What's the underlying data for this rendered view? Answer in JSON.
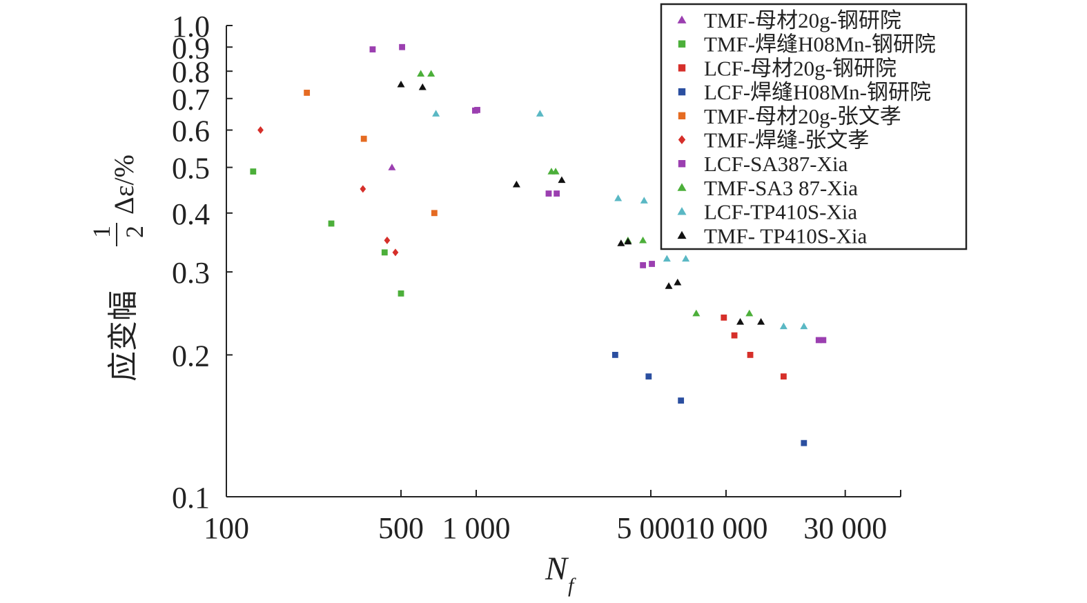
{
  "chart_data": {
    "type": "scatter",
    "title": "",
    "xlabel": "N_f",
    "xlabel_main": "N",
    "xlabel_sub": "f",
    "ylabel": "应变幅 1/2 Δε/%",
    "ylabel_text": "应变幅",
    "ylabel_frac_num": "1",
    "ylabel_frac_den": "2",
    "ylabel_symbol": "Δε/%",
    "x_scale": "log",
    "y_scale": "log",
    "xlim": [
      100,
      50000
    ],
    "ylim": [
      0.1,
      1.0
    ],
    "x_ticks": [
      {
        "value": 100,
        "label": "100"
      },
      {
        "value": 500,
        "label": "500"
      },
      {
        "value": 1000,
        "label": "1 000"
      },
      {
        "value": 5000,
        "label": "5 000"
      },
      {
        "value": 10000,
        "label": "10 000"
      },
      {
        "value": 30000,
        "label": "30 000"
      }
    ],
    "y_ticks": [
      {
        "value": 0.1,
        "label": "0.1"
      },
      {
        "value": 0.2,
        "label": "0.2"
      },
      {
        "value": 0.3,
        "label": "0.3"
      },
      {
        "value": 0.4,
        "label": "0.4"
      },
      {
        "value": 0.5,
        "label": "0.5"
      },
      {
        "value": 0.6,
        "label": "0.6"
      },
      {
        "value": 0.7,
        "label": "0.7"
      },
      {
        "value": 0.8,
        "label": "0.8"
      },
      {
        "value": 0.9,
        "label": "0.9"
      },
      {
        "value": 1.0,
        "label": "1.0"
      }
    ],
    "legend_position": "top-right",
    "grid": false,
    "series": [
      {
        "name": "TMF-母材20g-钢研院",
        "marker": "triangle",
        "color": "#9b3fb0",
        "points": [
          [
            460,
            0.5
          ]
        ]
      },
      {
        "name": "TMF-焊缝H08Mn-钢研院",
        "marker": "square",
        "color": "#4caf3a",
        "points": [
          [
            128,
            0.49
          ],
          [
            263,
            0.38
          ],
          [
            430,
            0.33
          ],
          [
            500,
            0.27
          ]
        ]
      },
      {
        "name": "LCF-母材20g-钢研院",
        "marker": "square",
        "color": "#d62f2a",
        "points": [
          [
            9800,
            0.24
          ],
          [
            10800,
            0.22
          ],
          [
            12500,
            0.2
          ],
          [
            17000,
            0.18
          ]
        ]
      },
      {
        "name": "LCF-焊缝H08Mn-钢研院",
        "marker": "square",
        "color": "#2b4fa0",
        "points": [
          [
            3600,
            0.2
          ],
          [
            4900,
            0.18
          ],
          [
            6600,
            0.16
          ],
          [
            20500,
            0.13
          ]
        ]
      },
      {
        "name": "TMF-母材20g-张文孝",
        "marker": "square",
        "color": "#e56b22",
        "points": [
          [
            210,
            0.72
          ],
          [
            355,
            0.575
          ],
          [
            680,
            0.4
          ]
        ]
      },
      {
        "name": "TMF-焊缝-张文孝",
        "marker": "diamond",
        "color": "#d62f2a",
        "points": [
          [
            137,
            0.6
          ],
          [
            352,
            0.45
          ],
          [
            440,
            0.35
          ],
          [
            475,
            0.33
          ]
        ]
      },
      {
        "name": "LCF-SA387-Xia",
        "marker": "square",
        "color": "#9b3fb0",
        "points": [
          [
            385,
            0.89
          ],
          [
            505,
            0.9
          ],
          [
            990,
            0.66
          ],
          [
            1010,
            0.662
          ],
          [
            1950,
            0.44
          ],
          [
            2100,
            0.44
          ],
          [
            4650,
            0.31
          ],
          [
            5050,
            0.312
          ],
          [
            23500,
            0.215
          ],
          [
            24500,
            0.215
          ]
        ]
      },
      {
        "name": "TMF-SA3 87-Xia",
        "marker": "triangle",
        "color": "#4caf3a",
        "points": [
          [
            600,
            0.79
          ],
          [
            660,
            0.79
          ],
          [
            2000,
            0.49
          ],
          [
            2080,
            0.49
          ],
          [
            4050,
            0.35
          ],
          [
            4650,
            0.35
          ],
          [
            7600,
            0.245
          ],
          [
            12400,
            0.245
          ]
        ]
      },
      {
        "name": "LCF-TP410S-Xia",
        "marker": "triangle",
        "color": "#5ab8c4",
        "points": [
          [
            690,
            0.65
          ],
          [
            1800,
            0.65
          ],
          [
            3700,
            0.43
          ],
          [
            4700,
            0.425
          ],
          [
            5800,
            0.32
          ],
          [
            6900,
            0.32
          ],
          [
            17000,
            0.23
          ],
          [
            20500,
            0.23
          ]
        ]
      },
      {
        "name": "TMF- TP410S-Xia",
        "marker": "triangle",
        "color": "#111111",
        "points": [
          [
            500,
            0.75
          ],
          [
            610,
            0.74
          ],
          [
            1450,
            0.46
          ],
          [
            2200,
            0.47
          ],
          [
            3800,
            0.345
          ],
          [
            4050,
            0.348
          ],
          [
            5900,
            0.28
          ],
          [
            6400,
            0.285
          ],
          [
            11400,
            0.235
          ],
          [
            13800,
            0.235
          ]
        ]
      }
    ]
  }
}
